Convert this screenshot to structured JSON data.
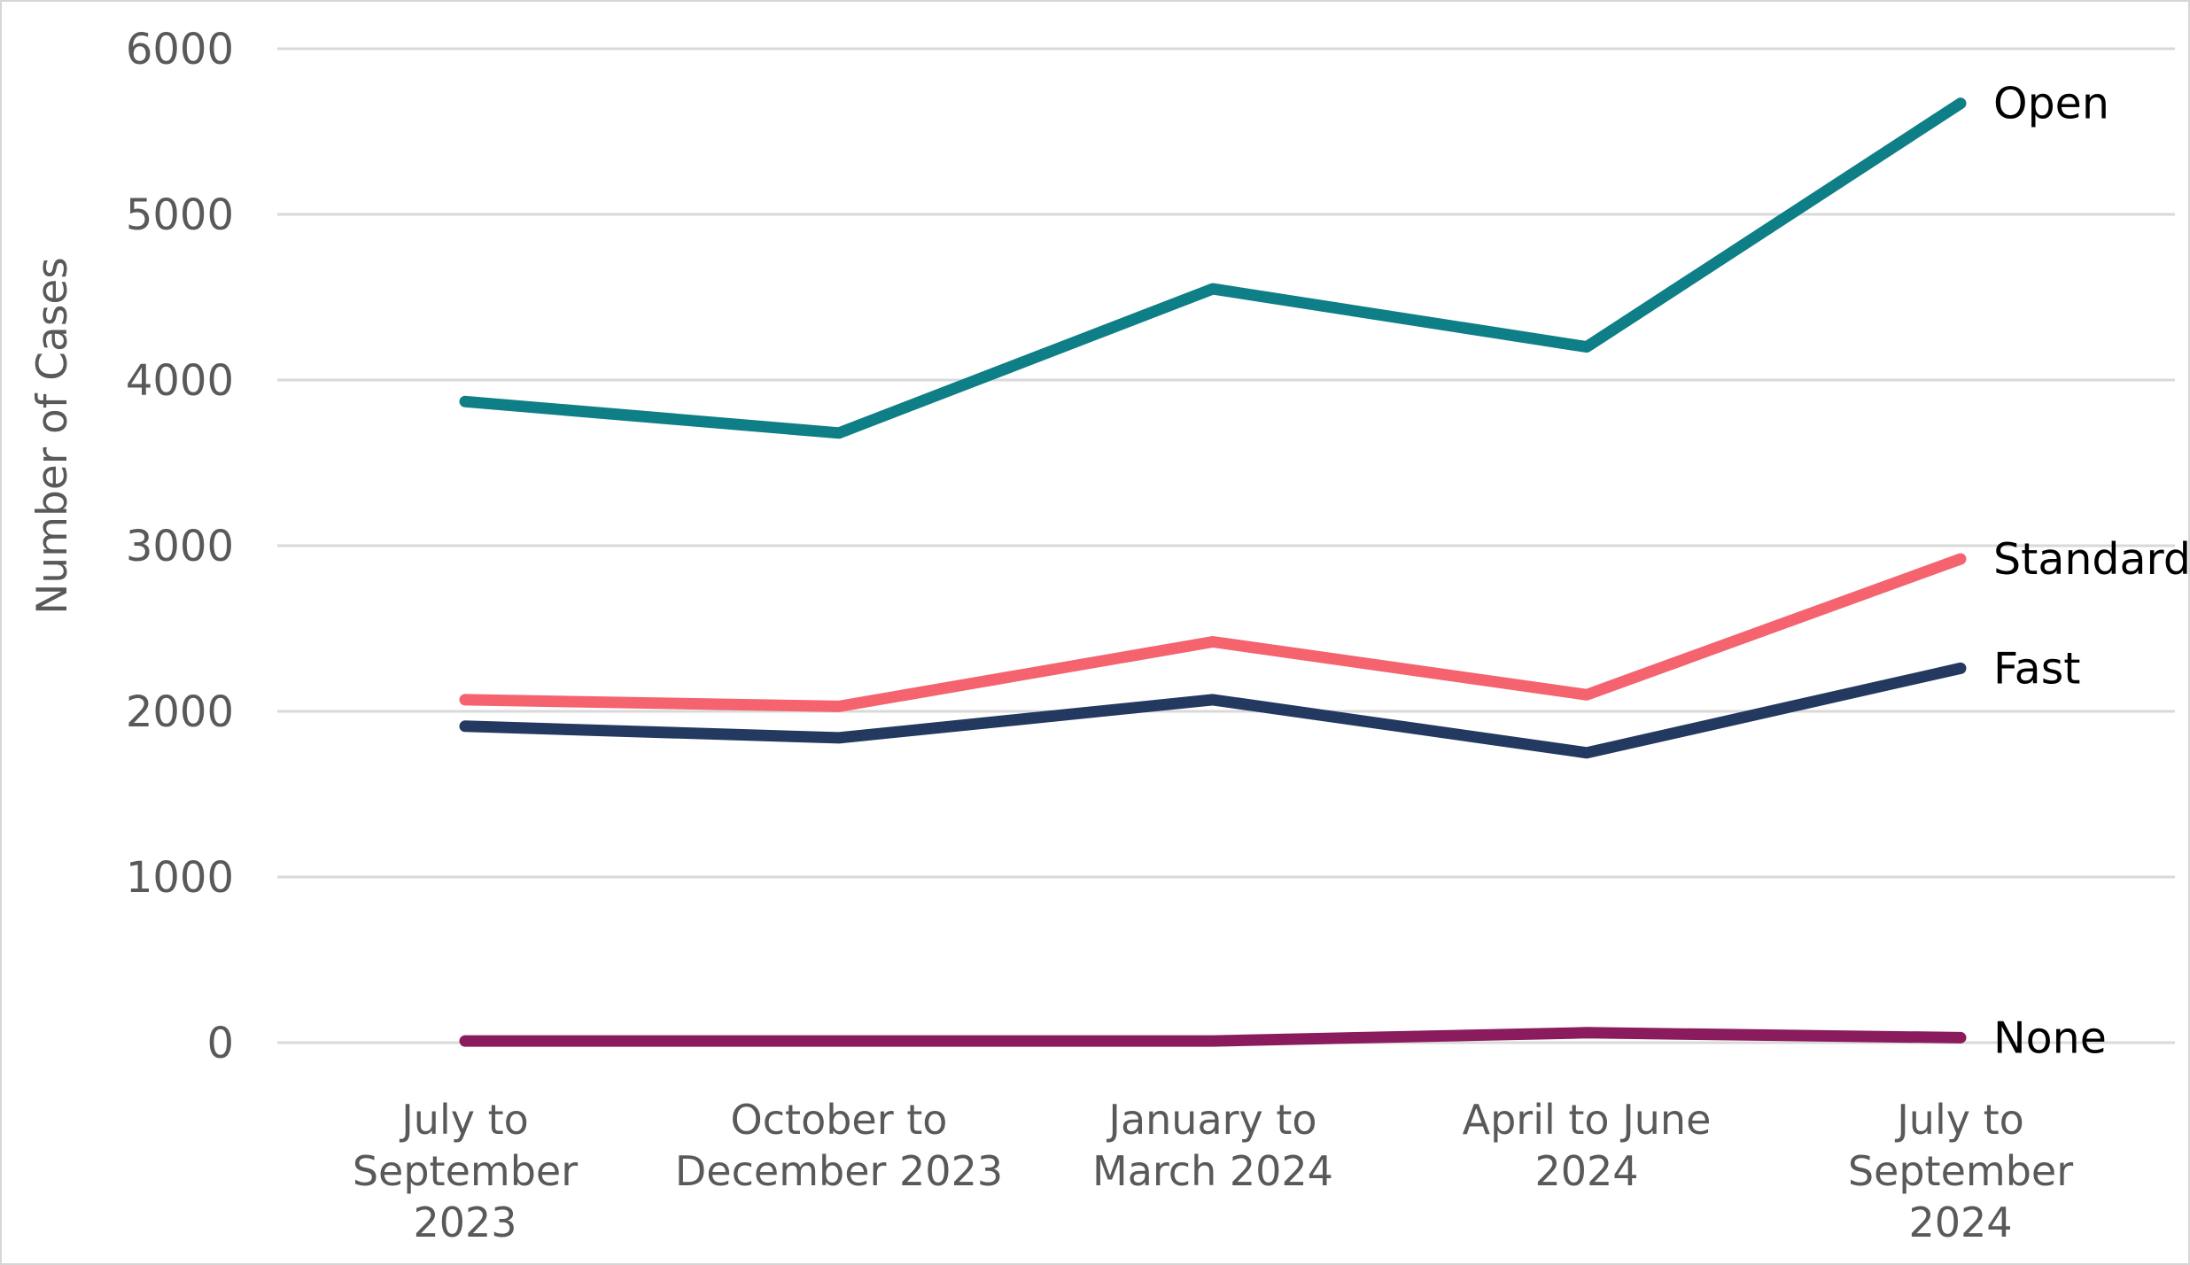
{
  "chart_data": {
    "type": "line",
    "title": "",
    "xlabel": "",
    "ylabel": "Number of Cases",
    "ylim": [
      0,
      6000
    ],
    "ytick_step": 1000,
    "ytick_labels": [
      "0",
      "1000",
      "2000",
      "3000",
      "4000",
      "5000",
      "6000"
    ],
    "grid": "horizontal",
    "legend_position": "line-end-labels",
    "categories": [
      "July to September 2023",
      "October to December 2023",
      "January to March 2024",
      "April to June 2024",
      "July to September 2024"
    ],
    "category_display_lines": [
      [
        "July to",
        "September",
        "2023"
      ],
      [
        "October to",
        "December 2023"
      ],
      [
        "January to",
        "March 2024"
      ],
      [
        "April to June",
        "2024"
      ],
      [
        "July to",
        "September",
        "2024"
      ]
    ],
    "series": [
      {
        "name": "Open",
        "color": "#0E7E87",
        "values": [
          3870,
          3680,
          4550,
          4200,
          5670
        ]
      },
      {
        "name": "Standard",
        "color": "#F4636E",
        "values": [
          2070,
          2030,
          2420,
          2100,
          2920
        ]
      },
      {
        "name": "Fast",
        "color": "#24395F",
        "values": [
          1910,
          1840,
          2070,
          1750,
          2260
        ]
      },
      {
        "name": "None",
        "color": "#8A1B5D",
        "values": [
          10,
          10,
          10,
          60,
          30
        ]
      }
    ]
  },
  "colors": {
    "gridline": "#D9D9D9",
    "axis_text": "#595959",
    "series_label_text": "#000000",
    "background": "#FFFFFF",
    "border": "#D6D6D6"
  }
}
